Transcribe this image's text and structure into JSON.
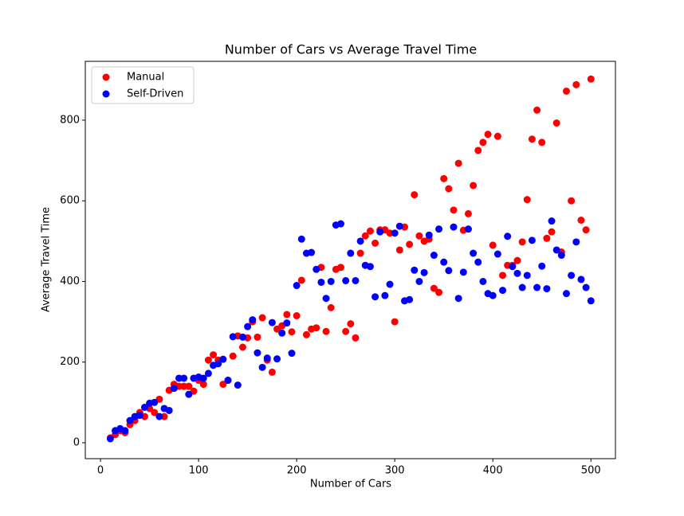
{
  "chart_data": {
    "type": "scatter",
    "title": "Number of Cars vs Average Travel Time",
    "x_label": "Number of Cars",
    "y_label": "Average Travel Time",
    "x": [
      10,
      15,
      20,
      25,
      30,
      35,
      40,
      45,
      50,
      55,
      60,
      65,
      70,
      75,
      80,
      85,
      90,
      95,
      100,
      105,
      110,
      115,
      120,
      125,
      130,
      135,
      140,
      145,
      150,
      155,
      160,
      165,
      170,
      175,
      180,
      185,
      190,
      195,
      200,
      205,
      210,
      215,
      220,
      225,
      230,
      235,
      240,
      245,
      250,
      255,
      260,
      265,
      270,
      275,
      280,
      285,
      290,
      295,
      300,
      305,
      310,
      315,
      320,
      325,
      330,
      335,
      340,
      345,
      350,
      355,
      360,
      365,
      370,
      375,
      380,
      385,
      390,
      395,
      400,
      405,
      410,
      415,
      420,
      425,
      430,
      435,
      440,
      445,
      450,
      455,
      460,
      465,
      470,
      475,
      480,
      485,
      490,
      495,
      500
    ],
    "series": [
      {
        "name": "Manual",
        "color": "#ff0000",
        "values": [
          12,
          20,
          30,
          25,
          45,
          55,
          75,
          65,
          85,
          75,
          108,
          65,
          130,
          145,
          140,
          140,
          140,
          128,
          155,
          145,
          205,
          218,
          205,
          145,
          155,
          215,
          265,
          237,
          260,
          300,
          262,
          310,
          205,
          175,
          282,
          290,
          318,
          275,
          315,
          403,
          268,
          282,
          285,
          435,
          276,
          335,
          430,
          435,
          276,
          295,
          260,
          470,
          513,
          525,
          495,
          528,
          528,
          520,
          300,
          478,
          535,
          492,
          615,
          513,
          500,
          505,
          383,
          373,
          655,
          630,
          577,
          693,
          527,
          568,
          638,
          725,
          745,
          765,
          490,
          760,
          415,
          440,
          440,
          452,
          498,
          603,
          753,
          825,
          745,
          507,
          523,
          793,
          473,
          872,
          600,
          888,
          552,
          528,
          902
        ]
      },
      {
        "name": "Self-Driven",
        "color": "#0000ff",
        "values": [
          10,
          30,
          35,
          30,
          55,
          65,
          68,
          88,
          98,
          100,
          65,
          85,
          80,
          135,
          160,
          160,
          120,
          160,
          163,
          160,
          172,
          192,
          196,
          207,
          155,
          263,
          143,
          262,
          288,
          305,
          223,
          187,
          210,
          298,
          208,
          272,
          297,
          222,
          390,
          505,
          470,
          472,
          430,
          398,
          358,
          400,
          540,
          543,
          402,
          470,
          402,
          500,
          440,
          437,
          362,
          523,
          365,
          393,
          520,
          537,
          352,
          355,
          428,
          400,
          422,
          515,
          465,
          530,
          448,
          427,
          535,
          358,
          423,
          530,
          470,
          448,
          400,
          370,
          365,
          468,
          378,
          512,
          437,
          420,
          385,
          415,
          502,
          385,
          438,
          382,
          550,
          478,
          465,
          370,
          415,
          498,
          405,
          385,
          352
        ]
      }
    ],
    "xlim": [
      -15.5,
      525
    ],
    "ylim": [
      -39.5,
      946
    ],
    "xticks": [
      0,
      100,
      200,
      300,
      400,
      500
    ],
    "yticks": [
      0,
      200,
      400,
      600,
      800
    ],
    "legend": "upper left"
  }
}
